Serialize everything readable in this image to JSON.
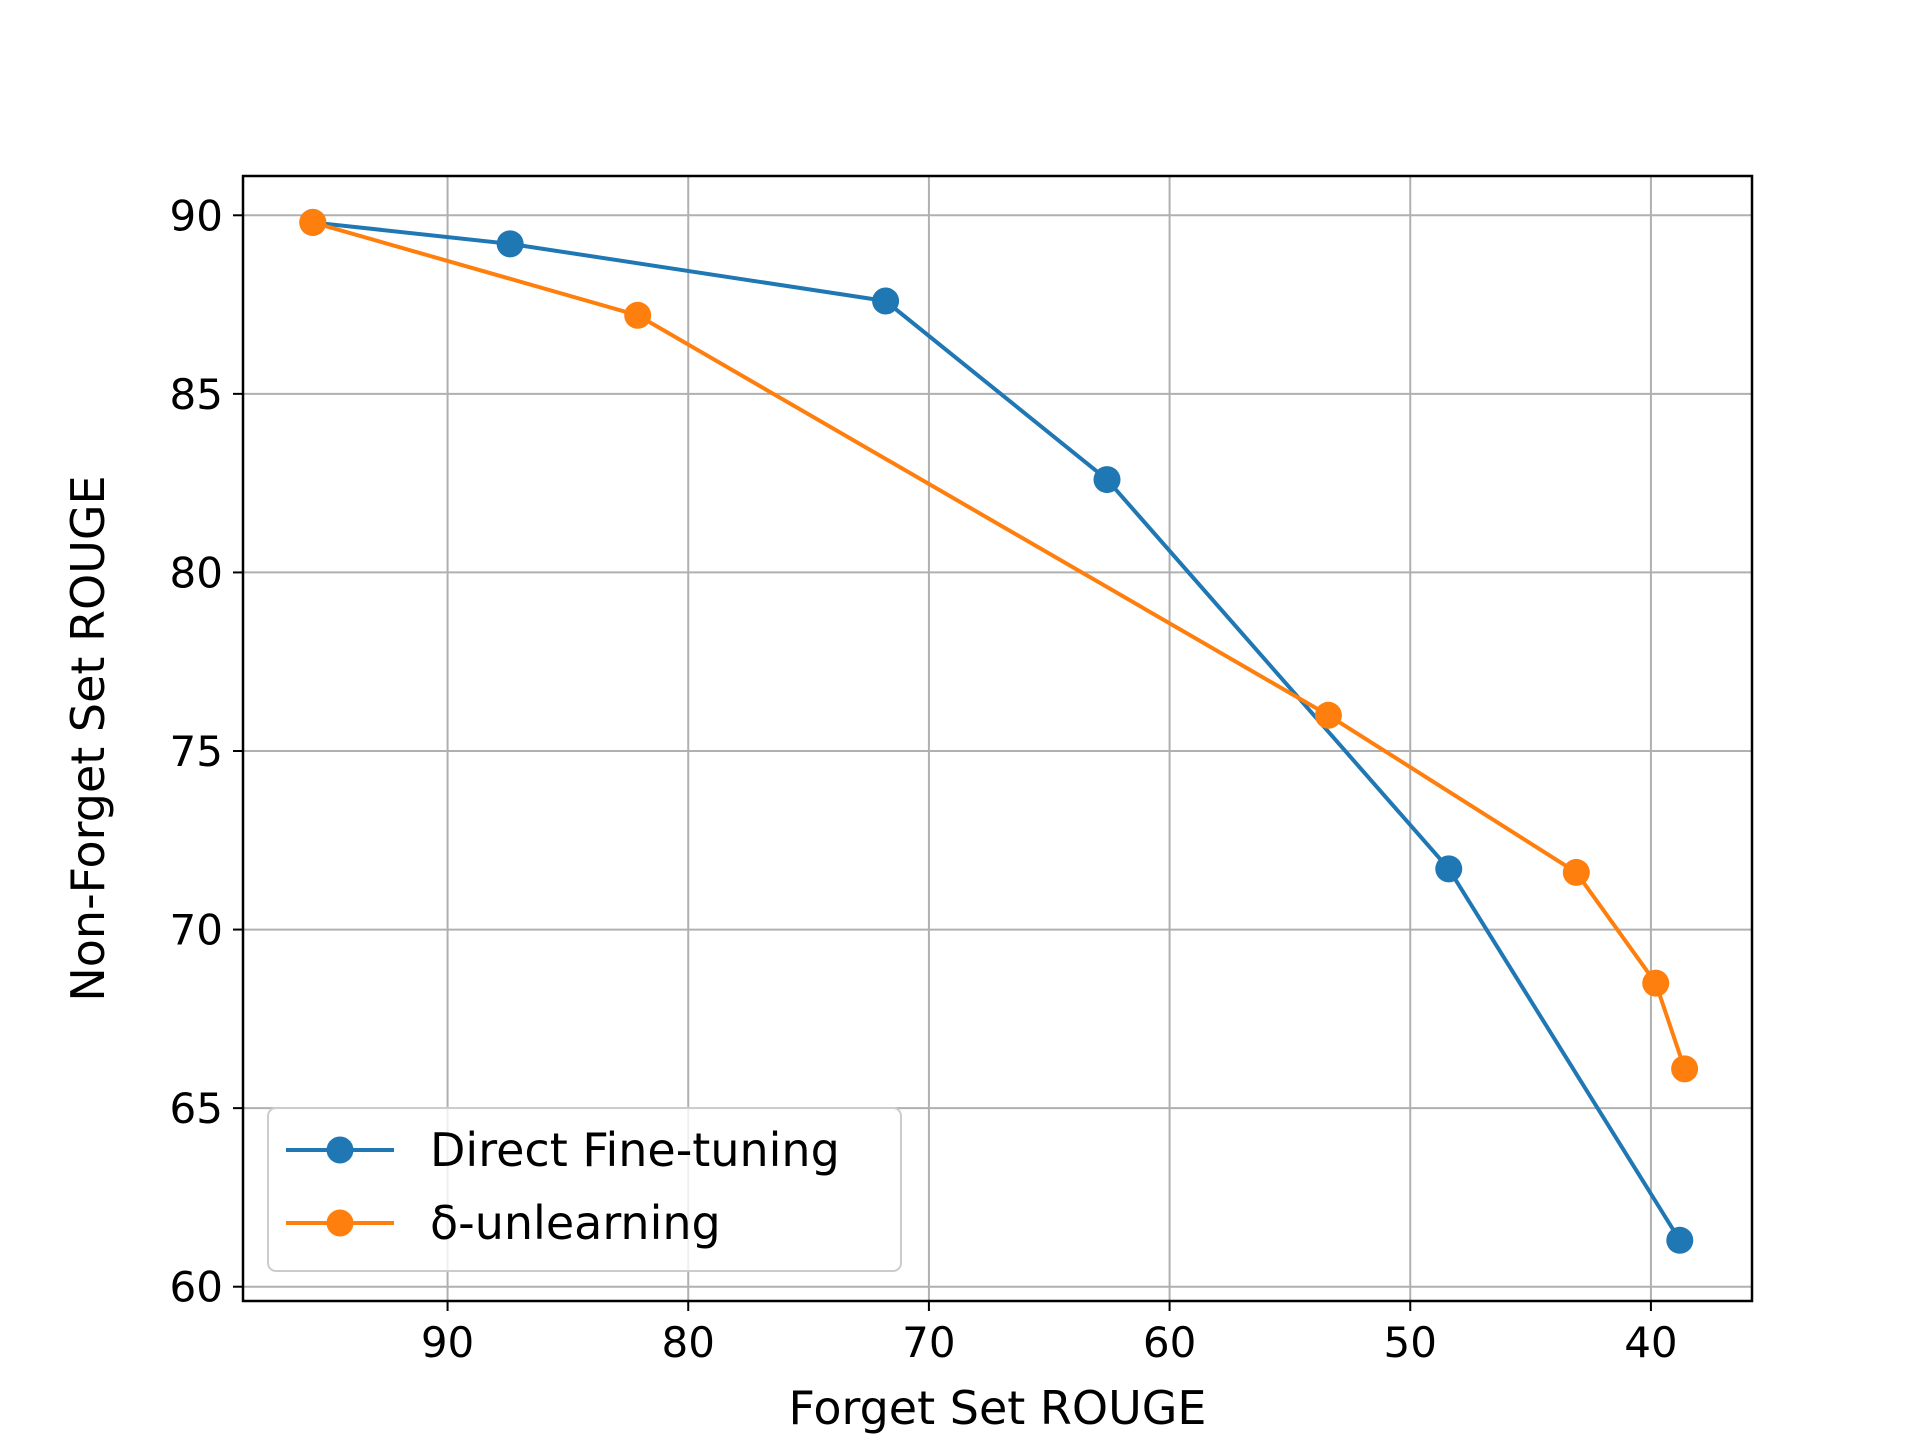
{
  "chart_data": {
    "type": "line",
    "xlabel": "Forget Set ROUGE",
    "ylabel": "Non-Forget Set ROUGE",
    "xlim": [
      98.5,
      35.8
    ],
    "ylim": [
      59.6,
      91.1
    ],
    "x_inverted": true,
    "xticks": [
      90,
      80,
      70,
      60,
      50,
      40
    ],
    "yticks": [
      60,
      65,
      70,
      75,
      80,
      85,
      90
    ],
    "grid": true,
    "legend_position": "lower-left",
    "series": [
      {
        "name": "Direct Fine-tuning",
        "color": "#1f77b4",
        "marker": "circle",
        "x": [
          95.6,
          87.4,
          71.8,
          62.6,
          48.4,
          38.8
        ],
        "y": [
          89.8,
          89.2,
          87.6,
          82.6,
          71.7,
          61.3
        ]
      },
      {
        "name": "δ-unlearning",
        "color": "#ff7f0e",
        "marker": "circle",
        "x": [
          95.6,
          82.1,
          53.4,
          43.1,
          39.8,
          38.6
        ],
        "y": [
          89.8,
          87.2,
          76.0,
          71.6,
          68.5,
          66.1
        ]
      }
    ]
  }
}
